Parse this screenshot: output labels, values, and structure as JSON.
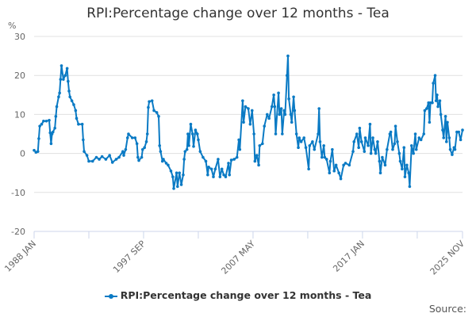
{
  "chart_data": {
    "type": "line",
    "title": "RPI:Percentage change over 12 months - Tea",
    "ylabel": "%",
    "ylim": [
      -20,
      30
    ],
    "yticks": [
      30,
      20,
      10,
      0,
      -10,
      -20
    ],
    "xlim": [
      "1988-01",
      "2025-11"
    ],
    "xtick_labels": [
      {
        "date": "1988-01",
        "label": "1988 JAN"
      },
      {
        "date": "1997-09",
        "label": "1997 SEP"
      },
      {
        "date": "2007-05",
        "label": "2007 MAY"
      },
      {
        "date": "2017-01",
        "label": "2017 JAN"
      },
      {
        "date": "2025-11",
        "label": "2025 NOV"
      }
    ],
    "grid": true,
    "legend_position": "bottom",
    "color": "#0a7ac4",
    "series": [
      {
        "name": "RPI:Percentage change over 12 months - Tea",
        "points": [
          [
            "1988-01",
            0.8
          ],
          [
            "1988-03",
            0.3
          ],
          [
            "1988-05",
            0.5
          ],
          [
            "1988-06",
            3.8
          ],
          [
            "1988-07",
            7
          ],
          [
            "1988-09",
            7.5
          ],
          [
            "1988-11",
            8.3
          ],
          [
            "1989-02",
            8.3
          ],
          [
            "1989-05",
            8.5
          ],
          [
            "1989-06",
            5.3
          ],
          [
            "1989-07",
            2.5
          ],
          [
            "1989-08",
            5
          ],
          [
            "1989-09",
            5.5
          ],
          [
            "1989-11",
            6.5
          ],
          [
            "1989-12",
            9.5
          ],
          [
            "1990-01",
            12
          ],
          [
            "1990-03",
            14.5
          ],
          [
            "1990-04",
            15.5
          ],
          [
            "1990-05",
            19
          ],
          [
            "1990-06",
            22.5
          ],
          [
            "1990-08",
            19
          ],
          [
            "1990-10",
            20
          ],
          [
            "1990-12",
            21.8
          ],
          [
            "1991-01",
            18.5
          ],
          [
            "1991-02",
            16
          ],
          [
            "1991-03",
            14.5
          ],
          [
            "1991-05",
            13.5
          ],
          [
            "1991-07",
            12.5
          ],
          [
            "1991-09",
            11
          ],
          [
            "1991-10",
            9
          ],
          [
            "1991-12",
            7.5
          ],
          [
            "1992-04",
            7.5
          ],
          [
            "1992-05",
            3.5
          ],
          [
            "1992-06",
            0.5
          ],
          [
            "1992-09",
            -0.5
          ],
          [
            "1992-11",
            -2
          ],
          [
            "1993-03",
            -2
          ],
          [
            "1993-07",
            -1
          ],
          [
            "1993-10",
            -1.5
          ],
          [
            "1994-01",
            -0.8
          ],
          [
            "1994-05",
            -1.5
          ],
          [
            "1994-09",
            -0.5
          ],
          [
            "1994-12",
            -2.3
          ],
          [
            "1995-04",
            -1.5
          ],
          [
            "1995-07",
            -1
          ],
          [
            "1995-11",
            0.5
          ],
          [
            "1995-12",
            -0.5
          ],
          [
            "1996-02",
            1
          ],
          [
            "1996-04",
            4
          ],
          [
            "1996-05",
            5
          ],
          [
            "1996-09",
            4
          ],
          [
            "1996-12",
            4
          ],
          [
            "1997-02",
            2.5
          ],
          [
            "1997-03",
            -1
          ],
          [
            "1997-04",
            -1.8
          ],
          [
            "1997-07",
            -1
          ],
          [
            "1997-08",
            1
          ],
          [
            "1997-10",
            1.5
          ],
          [
            "1997-12",
            3
          ],
          [
            "1998-01",
            5
          ],
          [
            "1998-02",
            11.8
          ],
          [
            "1998-03",
            13.3
          ],
          [
            "1998-06",
            13.5
          ],
          [
            "1998-08",
            11
          ],
          [
            "1998-11",
            10.5
          ],
          [
            "1999-01",
            9.5
          ],
          [
            "1999-02",
            2
          ],
          [
            "1999-03",
            0.5
          ],
          [
            "1999-05",
            -2
          ],
          [
            "1999-06",
            -1.5
          ],
          [
            "1999-09",
            -2.5
          ],
          [
            "1999-11",
            -3
          ],
          [
            "2000-02",
            -4.5
          ],
          [
            "2000-04",
            -6
          ],
          [
            "2000-05",
            -9
          ],
          [
            "2000-08",
            -5
          ],
          [
            "2000-09",
            -8.5
          ],
          [
            "2000-11",
            -5
          ],
          [
            "2001-01",
            -8
          ],
          [
            "2001-03",
            -5.5
          ],
          [
            "2001-04",
            -1.5
          ],
          [
            "2001-05",
            0.5
          ],
          [
            "2001-07",
            1
          ],
          [
            "2001-08",
            5
          ],
          [
            "2001-09",
            2
          ],
          [
            "2001-11",
            7.5
          ],
          [
            "2002-01",
            5
          ],
          [
            "2002-02",
            1.8
          ],
          [
            "2002-04",
            6
          ],
          [
            "2002-06",
            5
          ],
          [
            "2002-07",
            3.5
          ],
          [
            "2002-09",
            0.5
          ],
          [
            "2002-12",
            -1
          ],
          [
            "2003-03",
            -2
          ],
          [
            "2003-05",
            -5.5
          ],
          [
            "2003-06",
            -3.5
          ],
          [
            "2003-09",
            -4
          ],
          [
            "2003-11",
            -6
          ],
          [
            "2004-01",
            -4
          ],
          [
            "2004-04",
            -1.5
          ],
          [
            "2004-06",
            -6
          ],
          [
            "2004-08",
            -4
          ],
          [
            "2004-10",
            -5.5
          ],
          [
            "2004-12",
            -6
          ],
          [
            "2005-03",
            -2.5
          ],
          [
            "2005-04",
            -5.5
          ],
          [
            "2005-06",
            -1.7
          ],
          [
            "2005-09",
            -1.5
          ],
          [
            "2005-12",
            -1
          ],
          [
            "2006-02",
            3.5
          ],
          [
            "2006-03",
            1
          ],
          [
            "2006-06",
            13.5
          ],
          [
            "2006-07",
            8
          ],
          [
            "2006-09",
            12
          ],
          [
            "2006-12",
            11.5
          ],
          [
            "2007-02",
            7.5
          ],
          [
            "2007-04",
            11
          ],
          [
            "2007-06",
            5
          ],
          [
            "2007-07",
            -2
          ],
          [
            "2007-09",
            -0.5
          ],
          [
            "2007-11",
            -3
          ],
          [
            "2007-12",
            2
          ],
          [
            "2008-03",
            2.5
          ],
          [
            "2008-05",
            7
          ],
          [
            "2008-08",
            10
          ],
          [
            "2008-10",
            9
          ],
          [
            "2009-01",
            12
          ],
          [
            "2009-03",
            15
          ],
          [
            "2009-04",
            12
          ],
          [
            "2009-05",
            5
          ],
          [
            "2009-08",
            15.5
          ],
          [
            "2009-09",
            10
          ],
          [
            "2009-11",
            11.5
          ],
          [
            "2009-12",
            5
          ],
          [
            "2010-02",
            11
          ],
          [
            "2010-03",
            10
          ],
          [
            "2010-05",
            20
          ],
          [
            "2010-06",
            25
          ],
          [
            "2010-07",
            14
          ],
          [
            "2010-09",
            10
          ],
          [
            "2010-10",
            8
          ],
          [
            "2010-12",
            14.5
          ],
          [
            "2011-01",
            11
          ],
          [
            "2011-03",
            5
          ],
          [
            "2011-05",
            1.5
          ],
          [
            "2011-06",
            4
          ],
          [
            "2011-08",
            3
          ],
          [
            "2011-11",
            4
          ],
          [
            "2012-01",
            1.5
          ],
          [
            "2012-04",
            -4
          ],
          [
            "2012-05",
            2
          ],
          [
            "2012-08",
            3
          ],
          [
            "2012-10",
            1
          ],
          [
            "2013-02",
            5
          ],
          [
            "2013-03",
            11.5
          ],
          [
            "2013-04",
            3
          ],
          [
            "2013-06",
            -1
          ],
          [
            "2013-08",
            2
          ],
          [
            "2013-09",
            -1
          ],
          [
            "2013-11",
            -1.5
          ],
          [
            "2014-02",
            -5
          ],
          [
            "2014-03",
            -2
          ],
          [
            "2014-05",
            1
          ],
          [
            "2014-07",
            -4.5
          ],
          [
            "2014-09",
            -3
          ],
          [
            "2014-12",
            -5
          ],
          [
            "2015-02",
            -6.5
          ],
          [
            "2015-05",
            -3
          ],
          [
            "2015-07",
            -2.5
          ],
          [
            "2015-11",
            -3
          ],
          [
            "2016-03",
            0.5
          ],
          [
            "2016-04",
            3
          ],
          [
            "2016-07",
            5
          ],
          [
            "2016-09",
            1.5
          ],
          [
            "2016-10",
            6.5
          ],
          [
            "2016-12",
            3
          ],
          [
            "2017-03",
            0.5
          ],
          [
            "2017-04",
            4
          ],
          [
            "2017-07",
            2
          ],
          [
            "2017-09",
            7.5
          ],
          [
            "2017-10",
            0
          ],
          [
            "2017-12",
            4
          ],
          [
            "2018-02",
            1
          ],
          [
            "2018-03",
            0
          ],
          [
            "2018-05",
            3
          ],
          [
            "2018-07",
            -2
          ],
          [
            "2018-08",
            -5
          ],
          [
            "2018-10",
            -1
          ],
          [
            "2019-01",
            -3
          ],
          [
            "2019-03",
            1
          ],
          [
            "2019-06",
            5
          ],
          [
            "2019-07",
            5.5
          ],
          [
            "2019-09",
            1
          ],
          [
            "2019-11",
            2.5
          ],
          [
            "2019-12",
            7
          ],
          [
            "2020-02",
            3
          ],
          [
            "2020-04",
            0
          ],
          [
            "2020-05",
            -2
          ],
          [
            "2020-07",
            -4
          ],
          [
            "2020-09",
            1.5
          ],
          [
            "2020-10",
            -6
          ],
          [
            "2020-12",
            -3
          ],
          [
            "2021-02",
            -5
          ],
          [
            "2021-03",
            -8.5
          ],
          [
            "2021-05",
            2
          ],
          [
            "2021-07",
            0
          ],
          [
            "2021-09",
            5
          ],
          [
            "2021-10",
            1
          ],
          [
            "2022-01",
            4
          ],
          [
            "2022-03",
            3.5
          ],
          [
            "2022-06",
            5
          ],
          [
            "2022-07",
            11
          ],
          [
            "2022-09",
            11.5
          ],
          [
            "2022-11",
            13
          ],
          [
            "2022-12",
            8
          ],
          [
            "2023-01",
            13
          ],
          [
            "2023-03",
            13
          ],
          [
            "2023-04",
            18
          ],
          [
            "2023-06",
            20
          ],
          [
            "2023-07",
            13.5
          ],
          [
            "2023-08",
            15
          ],
          [
            "2023-09",
            12
          ],
          [
            "2023-11",
            13.5
          ],
          [
            "2023-12",
            10
          ],
          [
            "2024-02",
            6
          ],
          [
            "2024-03",
            4
          ],
          [
            "2024-05",
            9.5
          ],
          [
            "2024-06",
            3
          ],
          [
            "2024-07",
            8
          ],
          [
            "2024-09",
            4
          ],
          [
            "2024-10",
            1
          ],
          [
            "2024-12",
            -0.3
          ],
          [
            "2025-02",
            1.5
          ],
          [
            "2025-03",
            1
          ],
          [
            "2025-05",
            5.5
          ],
          [
            "2025-07",
            5.5
          ],
          [
            "2025-09",
            3.5
          ],
          [
            "2025-11",
            6
          ]
        ]
      }
    ]
  },
  "legend": {
    "label": "RPI:Percentage change over 12 months - Tea"
  },
  "source": {
    "label": "Source:"
  }
}
